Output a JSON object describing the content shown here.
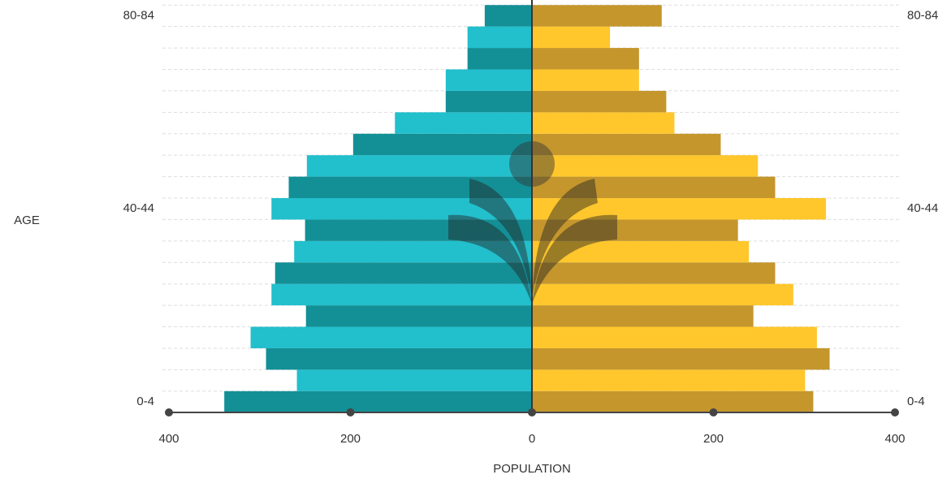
{
  "chart_data": {
    "type": "pyramid",
    "x_label": "POPULATION",
    "y_label": "AGE",
    "categories": [
      "0-4",
      null,
      null,
      null,
      null,
      null,
      null,
      null,
      null,
      "40-44",
      null,
      null,
      null,
      null,
      null,
      null,
      null,
      null,
      "80-84"
    ],
    "series": [
      {
        "colors": [
          "#138f96",
          "#22bfcc"
        ],
        "values": [
          -339,
          -259,
          -293,
          -310,
          -249,
          -287,
          -283,
          -262,
          -250,
          -287,
          -268,
          -248,
          -197,
          -151,
          -95,
          -95,
          -71,
          -71,
          -52
        ]
      },
      {
        "colors": [
          "#c4962c",
          "#ffc72c"
        ],
        "values": [
          310,
          301,
          328,
          314,
          244,
          288,
          268,
          239,
          227,
          324,
          268,
          249,
          208,
          157,
          148,
          118,
          118,
          86,
          143
        ]
      }
    ],
    "xlim": [
      -400,
      400
    ],
    "xticks": [
      {
        "value": -400,
        "label": "400"
      },
      {
        "value": -200,
        "label": "200"
      },
      0,
      200,
      400
    ]
  }
}
